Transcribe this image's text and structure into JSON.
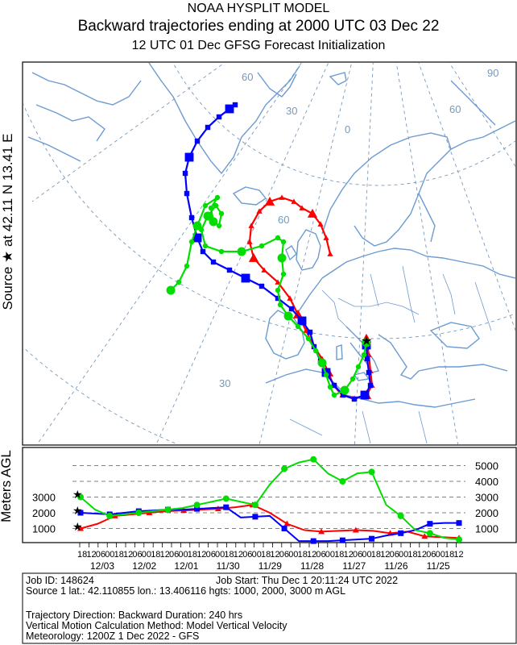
{
  "header": {
    "line1": "NOAA HYSPLIT MODEL",
    "line2": "Backward trajectories ending at 2000 UTC 03 Dec 22",
    "line3": "12 UTC 01 Dec    GFSG  Forecast Initialization"
  },
  "source_label": "Source ★  at   42.11 N   13.41 E",
  "map": {
    "lat_labels": [
      "60",
      "30",
      "0",
      "60",
      "90",
      "60",
      "30"
    ],
    "land_color": "#6b9bd1",
    "grid_color": "#7799bb"
  },
  "trajectories": [
    {
      "height_m": 1000,
      "color": "#ff0000",
      "marker": "triangle"
    },
    {
      "height_m": 2000,
      "color": "#0000ff",
      "marker": "square"
    },
    {
      "height_m": 3000,
      "color": "#00dd00",
      "marker": "circle"
    }
  ],
  "profile": {
    "ylabel": "Meters AGL",
    "left_ticks": [
      "3000",
      "2000",
      "1000"
    ],
    "right_ticks": [
      "5000",
      "4000",
      "3000",
      "2000",
      "1000"
    ],
    "time_ticks": [
      "18",
      "12",
      "06",
      "00",
      "18",
      "12",
      "06",
      "00",
      "18",
      "12",
      "06",
      "00",
      "18",
      "12",
      "06",
      "00",
      "18",
      "12",
      "06",
      "00",
      "18",
      "12",
      "06",
      "00",
      "18",
      "12",
      "06",
      "00",
      "18",
      "12",
      "06",
      "00",
      "18",
      "12",
      "06",
      "00",
      "18",
      "12",
      "06",
      "00",
      "18",
      "12"
    ],
    "dates": [
      "12/03",
      "12/02",
      "12/01",
      "11/30",
      "11/29",
      "11/28",
      "11/27",
      "11/26",
      "11/25"
    ],
    "red_heights": [
      1000,
      1300,
      1800,
      1900,
      2000,
      2100,
      2150,
      2200,
      2250,
      2350,
      2500,
      2000,
      1300,
      900,
      800,
      850,
      900,
      850,
      700,
      800,
      500,
      450,
      400
    ],
    "blue_heights": [
      2000,
      1950,
      1900,
      2000,
      2100,
      2150,
      2200,
      2200,
      2250,
      2300,
      2350,
      1700,
      1750,
      1800,
      1000,
      200,
      200,
      200,
      250,
      300,
      350,
      550,
      700,
      900,
      1300,
      1350,
      1350
    ],
    "green_heights": [
      3000,
      2200,
      1800,
      1900,
      2000,
      2100,
      2200,
      2300,
      2500,
      2700,
      2900,
      2700,
      2500,
      3800,
      4800,
      5200,
      5400,
      4500,
      4000,
      4500,
      4600,
      2500,
      1800,
      900,
      700,
      400,
      300
    ]
  },
  "info": {
    "job_id": "Job ID: 148624",
    "job_start": "Job Start: Thu Dec  1 20:11:24 UTC 2022",
    "source_line": "Source 1 lat.: 42.110855  lon.: 13.406116  hgts: 1000, 2000, 3000 m AGL",
    "direction": "Trajectory Direction: Backward       Duration: 240 hrs",
    "vertical": "Vertical Motion Calculation Method:       Model Vertical Velocity",
    "meteorology": "Meteorology: 1200Z  1 Dec 2022 - GFS"
  }
}
